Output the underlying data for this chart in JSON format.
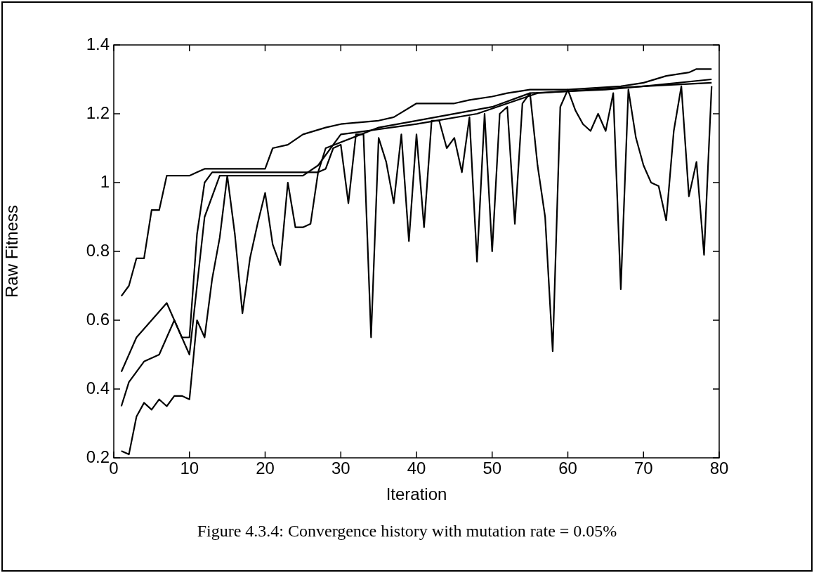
{
  "chart_data": {
    "type": "line",
    "xlabel": "Iteration",
    "ylabel": "Raw Fitness",
    "annotations": [
      "Figure 4.3.4: Convergence history with mutation rate = 0.05%"
    ],
    "xlim": [
      0,
      80
    ],
    "xticks": [
      0,
      10,
      20,
      30,
      40,
      50,
      60,
      70,
      80
    ],
    "ylim": [
      0.2,
      1.4
    ],
    "yticks": [
      0.2,
      0.4,
      0.6,
      0.8,
      1,
      1.2,
      1.4
    ],
    "grid": false,
    "legend": false,
    "marker": "none",
    "line_style": "solid",
    "series": [
      {
        "color": "#000000",
        "x": [
          1,
          2,
          3,
          4,
          5,
          6,
          7,
          8,
          9,
          10,
          11,
          12,
          20,
          21,
          23,
          25,
          28,
          30,
          35,
          37,
          40,
          45,
          47,
          50,
          52,
          55,
          60,
          67,
          70,
          73,
          76,
          77,
          79
        ],
        "values": [
          0.67,
          0.7,
          0.78,
          0.78,
          0.92,
          0.92,
          1.02,
          1.02,
          1.02,
          1.02,
          1.03,
          1.04,
          1.04,
          1.1,
          1.11,
          1.14,
          1.16,
          1.17,
          1.18,
          1.19,
          1.23,
          1.23,
          1.24,
          1.25,
          1.26,
          1.27,
          1.27,
          1.28,
          1.29,
          1.31,
          1.32,
          1.33,
          1.33
        ]
      },
      {
        "color": "#000000",
        "x": [
          1,
          3,
          5,
          7,
          9,
          10,
          11,
          12,
          13,
          27,
          28,
          35,
          40,
          50,
          55,
          65,
          70,
          79
        ],
        "values": [
          0.45,
          0.55,
          0.6,
          0.65,
          0.55,
          0.55,
          0.85,
          1.0,
          1.03,
          1.03,
          1.1,
          1.16,
          1.18,
          1.22,
          1.26,
          1.27,
          1.28,
          1.3
        ]
      },
      {
        "color": "#000000",
        "x": [
          1,
          2,
          4,
          6,
          8,
          10,
          11,
          12,
          14,
          25,
          27,
          30,
          40,
          48,
          56,
          70,
          79
        ],
        "values": [
          0.35,
          0.42,
          0.48,
          0.5,
          0.6,
          0.5,
          0.7,
          0.9,
          1.02,
          1.02,
          1.05,
          1.14,
          1.17,
          1.2,
          1.26,
          1.28,
          1.29
        ]
      },
      {
        "color": "#000000",
        "x": [
          1,
          2,
          3,
          4,
          5,
          6,
          7,
          8,
          9,
          10,
          11,
          12,
          13,
          14,
          15,
          16,
          17,
          18,
          19,
          20,
          21,
          22,
          23,
          24,
          25,
          26,
          27,
          28,
          29,
          30,
          31,
          32,
          33,
          34,
          35,
          36,
          37,
          38,
          39,
          40,
          41,
          42,
          43,
          44,
          45,
          46,
          47,
          48,
          49,
          50,
          51,
          52,
          53,
          54,
          55,
          56,
          57,
          58,
          59,
          60,
          61,
          62,
          63,
          64,
          65,
          66,
          67,
          68,
          69,
          70,
          71,
          72,
          73,
          74,
          75,
          76,
          77,
          78,
          79
        ],
        "values": [
          0.22,
          0.21,
          0.32,
          0.36,
          0.34,
          0.37,
          0.35,
          0.38,
          0.38,
          0.37,
          0.6,
          0.55,
          0.72,
          0.84,
          1.02,
          0.85,
          0.62,
          0.78,
          0.88,
          0.97,
          0.82,
          0.76,
          1.0,
          0.87,
          0.87,
          0.88,
          1.03,
          1.04,
          1.1,
          1.11,
          0.94,
          1.14,
          1.14,
          0.55,
          1.13,
          1.06,
          0.94,
          1.14,
          0.83,
          1.14,
          0.87,
          1.18,
          1.18,
          1.1,
          1.13,
          1.03,
          1.19,
          0.77,
          1.2,
          0.8,
          1.2,
          1.22,
          0.88,
          1.23,
          1.26,
          1.05,
          0.9,
          0.51,
          1.22,
          1.27,
          1.21,
          1.17,
          1.15,
          1.2,
          1.15,
          1.26,
          0.69,
          1.27,
          1.13,
          1.05,
          1.0,
          0.99,
          0.89,
          1.15,
          1.28,
          0.96,
          1.06,
          0.79,
          1.28
        ]
      }
    ]
  }
}
